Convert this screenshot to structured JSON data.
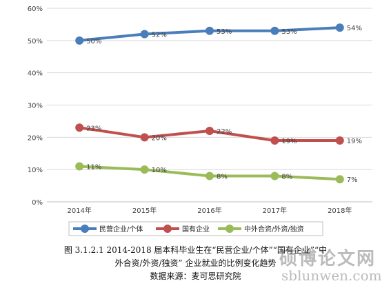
{
  "chart_data": {
    "type": "line",
    "categories": [
      "2014年",
      "2015年",
      "2016年",
      "2017年",
      "2018年"
    ],
    "ylim": [
      0,
      60
    ],
    "yticks": [
      "0%",
      "10%",
      "20%",
      "30%",
      "40%",
      "50%",
      "60%"
    ],
    "grid": true,
    "legend_position": "bottom",
    "series": [
      {
        "name": "民营企业/个体",
        "values": [
          50,
          52,
          53,
          53,
          54
        ],
        "labels": [
          "50%",
          "52%",
          "53%",
          "53%",
          "54%"
        ],
        "color": "#4a7ebb"
      },
      {
        "name": "国有企业",
        "values": [
          23,
          20,
          22,
          19,
          19
        ],
        "labels": [
          "23%",
          "20%",
          "22%",
          "19%",
          "19%"
        ],
        "color": "#c0504d"
      },
      {
        "name": "中外合资/外资/独资",
        "values": [
          11,
          10,
          8,
          8,
          7
        ],
        "labels": [
          "11%",
          "10%",
          "8%",
          "8%",
          "7%"
        ],
        "color": "#9bbb59"
      }
    ]
  },
  "caption": {
    "line1": "图 3.1.2.1   2014-2018 届本科毕业生在“民营企业/个体”“国有企业”“中",
    "line2": "外合资/外资/独资” 企业就业的比例变化趋势",
    "line3": "数据来源：麦可思研究院"
  },
  "watermark": {
    "title": "硕博论文网",
    "url": "sblunwen.com"
  }
}
